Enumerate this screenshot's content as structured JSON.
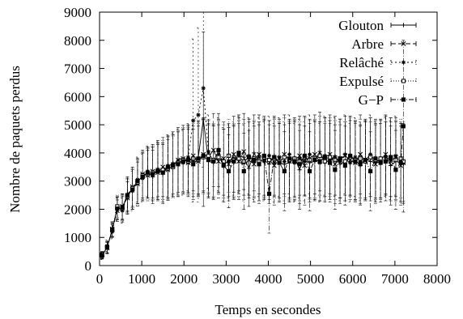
{
  "chart_data": {
    "type": "line",
    "title": "",
    "xlabel": "Temps en secondes",
    "ylabel": "Nombre de paquets perdus",
    "xlim": [
      0,
      8000
    ],
    "ylim": [
      0,
      9000
    ],
    "xticks": [
      0,
      1000,
      2000,
      3000,
      4000,
      5000,
      6000,
      7000,
      8000
    ],
    "yticks": [
      0,
      1000,
      2000,
      3000,
      4000,
      5000,
      6000,
      7000,
      8000,
      9000
    ],
    "xtick_labels": [
      "0",
      "1000",
      "2000",
      "3000",
      "4000",
      "5000",
      "6000",
      "7000",
      "8000"
    ],
    "ytick_labels": [
      "0",
      "1000",
      "2000",
      "3000",
      "4000",
      "5000",
      "6000",
      "7000",
      "8000",
      "9000"
    ],
    "grid": false,
    "legend_position": "top-right",
    "error_bars": true,
    "x": [
      60,
      180,
      300,
      420,
      540,
      660,
      780,
      900,
      1020,
      1140,
      1260,
      1380,
      1500,
      1620,
      1740,
      1860,
      1980,
      2100,
      2220,
      2340,
      2460,
      2580,
      2700,
      2820,
      2940,
      3060,
      3180,
      3300,
      3420,
      3540,
      3660,
      3780,
      3900,
      4020,
      4140,
      4260,
      4380,
      4500,
      4620,
      4740,
      4860,
      4980,
      5100,
      5220,
      5340,
      5460,
      5580,
      5700,
      5820,
      5940,
      6060,
      6180,
      6300,
      6420,
      6540,
      6660,
      6780,
      6900,
      7020,
      7140,
      7200
    ],
    "series": [
      {
        "name": "Glouton",
        "marker": "plus",
        "dash": "",
        "y": [
          350,
          650,
          1250,
          2050,
          2000,
          2550,
          2700,
          3000,
          3150,
          3300,
          3150,
          3450,
          3250,
          3500,
          3650,
          3600,
          3700,
          3800,
          3700,
          3850,
          5200,
          3700,
          3650,
          3900,
          3550,
          3750,
          3650,
          3900,
          3850,
          3450,
          4000,
          3700,
          3750,
          3600,
          3900,
          3650,
          3600,
          3650,
          3850,
          3400,
          3900,
          3650,
          3700,
          4050,
          3650,
          3750,
          3900,
          3600,
          3700,
          3900,
          3750,
          3550,
          3800,
          3700,
          3650,
          3800,
          3900,
          3550,
          3700,
          3650,
          3600
        ],
        "err": [
          120,
          200,
          250,
          400,
          450,
          600,
          700,
          800,
          850,
          900,
          950,
          1000,
          1050,
          1100,
          1100,
          1150,
          1150,
          1200,
          1250,
          1300,
          3100,
          1300,
          1300,
          1300,
          1300,
          1300,
          1300,
          1350,
          1350,
          1350,
          1350,
          1400,
          1400,
          1400,
          1400,
          1400,
          1400,
          1400,
          1400,
          1400,
          1400,
          1400,
          1400,
          1400,
          1400,
          1400,
          1400,
          1400,
          1400,
          1400,
          1400,
          1400,
          1400,
          1400,
          1400,
          1400,
          1400,
          1400,
          1400,
          1400,
          1400
        ]
      },
      {
        "name": "Arbre",
        "marker": "cross",
        "dash": "6,3",
        "y": [
          380,
          620,
          1300,
          1950,
          2100,
          2400,
          2800,
          2900,
          3250,
          3200,
          3350,
          3300,
          3500,
          3400,
          3550,
          3750,
          3800,
          3650,
          3900,
          3700,
          3950,
          3850,
          4100,
          3700,
          3800,
          3600,
          3950,
          3700,
          4050,
          3750,
          3600,
          3950,
          3800,
          3750,
          3550,
          3800,
          3950,
          3700,
          3750,
          3900,
          3550,
          3800,
          3950,
          3700,
          3850,
          3950,
          3600,
          3800,
          3900,
          3750,
          3650,
          3950,
          3700,
          3850,
          3600,
          3750,
          3950,
          3700,
          3850,
          3550,
          3650
        ],
        "err": [
          120,
          200,
          260,
          380,
          450,
          580,
          700,
          780,
          850,
          900,
          950,
          1000,
          1050,
          1080,
          1100,
          1150,
          1180,
          1200,
          1250,
          1250,
          1300,
          1300,
          1300,
          1300,
          1300,
          1300,
          1350,
          1350,
          1350,
          1350,
          1350,
          1400,
          1400,
          1400,
          1400,
          1400,
          1400,
          1400,
          1400,
          1400,
          1400,
          1400,
          1400,
          1400,
          1400,
          1400,
          1400,
          1400,
          1400,
          1400,
          1400,
          1400,
          1400,
          1400,
          1400,
          1400,
          1400,
          1400,
          1400,
          1400,
          1400
        ]
      },
      {
        "name": "Relâché",
        "marker": "star",
        "dash": "2,3",
        "y": [
          330,
          700,
          1200,
          2000,
          1950,
          2500,
          2650,
          3050,
          3100,
          3350,
          3250,
          3400,
          3300,
          3550,
          3600,
          3700,
          3650,
          3850,
          5150,
          5350,
          6300,
          4050,
          3700,
          3950,
          3600,
          3700,
          3800,
          3950,
          3650,
          3900,
          3700,
          3850,
          3700,
          3900,
          3650,
          3850,
          3700,
          3950,
          3650,
          3800,
          3700,
          3950,
          3750,
          3650,
          3900,
          3750,
          3850,
          3700,
          3950,
          3650,
          3850,
          3700,
          3750,
          3950,
          3700,
          3650,
          3850,
          3750,
          3900,
          3700,
          3650
        ],
        "err": [
          120,
          200,
          250,
          400,
          450,
          600,
          700,
          800,
          850,
          900,
          950,
          1000,
          1050,
          1100,
          1100,
          1150,
          1150,
          1200,
          2900,
          3100,
          2800,
          1300,
          1300,
          1300,
          1300,
          1300,
          1300,
          1350,
          1350,
          1350,
          1350,
          1400,
          1400,
          1400,
          1400,
          1400,
          1400,
          1400,
          1400,
          1400,
          1400,
          1400,
          1400,
          1400,
          1400,
          1400,
          1400,
          1400,
          1400,
          1400,
          1400,
          1400,
          1400,
          1400,
          1400,
          1400,
          1400,
          1400,
          1400,
          1400,
          1400
        ]
      },
      {
        "name": "Expulsé",
        "marker": "square-open",
        "dash": "1,2",
        "y": [
          360,
          640,
          1280,
          2100,
          2050,
          2450,
          2750,
          2950,
          3200,
          3250,
          3300,
          3350,
          3400,
          3450,
          3500,
          3650,
          3750,
          3700,
          3800,
          3750,
          3850,
          3900,
          3750,
          3850,
          3700,
          3900,
          3750,
          3800,
          3700,
          3850,
          3800,
          3700,
          3850,
          3750,
          3800,
          3700,
          3850,
          3750,
          3800,
          3700,
          3850,
          3750,
          3800,
          3900,
          3700,
          3850,
          3750,
          3800,
          3700,
          3850,
          3750,
          3800,
          3700,
          3850,
          3750,
          3800,
          3700,
          3850,
          3750,
          3800,
          3700
        ],
        "err": [
          120,
          200,
          250,
          400,
          450,
          600,
          700,
          800,
          850,
          900,
          950,
          1000,
          1050,
          1100,
          1100,
          1150,
          1150,
          1200,
          1250,
          1300,
          1300,
          1300,
          1300,
          1300,
          1300,
          1300,
          1300,
          1350,
          1350,
          1350,
          1350,
          1400,
          1400,
          1400,
          1400,
          1400,
          1400,
          1400,
          1400,
          1400,
          1400,
          1400,
          1400,
          1400,
          1400,
          1400,
          1400,
          1400,
          1400,
          1400,
          1400,
          1400,
          1400,
          1400,
          1400,
          1400,
          1400,
          1400,
          1400,
          1400,
          1400
        ]
      },
      {
        "name": "G−P",
        "marker": "square-filled",
        "dash": "6,2,1,2",
        "y": [
          370,
          660,
          1260,
          2020,
          2080,
          2500,
          2700,
          3000,
          3150,
          3300,
          3250,
          3350,
          3300,
          3500,
          3550,
          3600,
          3700,
          3750,
          3600,
          3800,
          3900,
          3750,
          3700,
          4100,
          3550,
          3350,
          3700,
          4000,
          3350,
          3850,
          3750,
          3600,
          3900,
          2550,
          3850,
          3650,
          3350,
          3800,
          3700,
          3600,
          3900,
          3350,
          3750,
          3700,
          3850,
          3650,
          3400,
          3800,
          3550,
          3900,
          3700,
          3600,
          3750,
          3350,
          3800,
          3650,
          3700,
          3850,
          3400,
          3650,
          4950
        ],
        "err": [
          120,
          200,
          250,
          400,
          450,
          600,
          700,
          800,
          850,
          900,
          950,
          1000,
          1050,
          1100,
          1100,
          1150,
          1150,
          1200,
          1250,
          1300,
          1300,
          1300,
          1300,
          1300,
          1300,
          1300,
          1300,
          1350,
          1350,
          1350,
          1350,
          1400,
          1400,
          1400,
          1400,
          1400,
          1400,
          1400,
          1400,
          1400,
          1400,
          1400,
          1400,
          1400,
          1400,
          1400,
          1400,
          1400,
          1400,
          1400,
          1400,
          1400,
          1400,
          1400,
          1400,
          1400,
          1400,
          1400,
          1400,
          1400,
          3050
        ]
      }
    ]
  }
}
